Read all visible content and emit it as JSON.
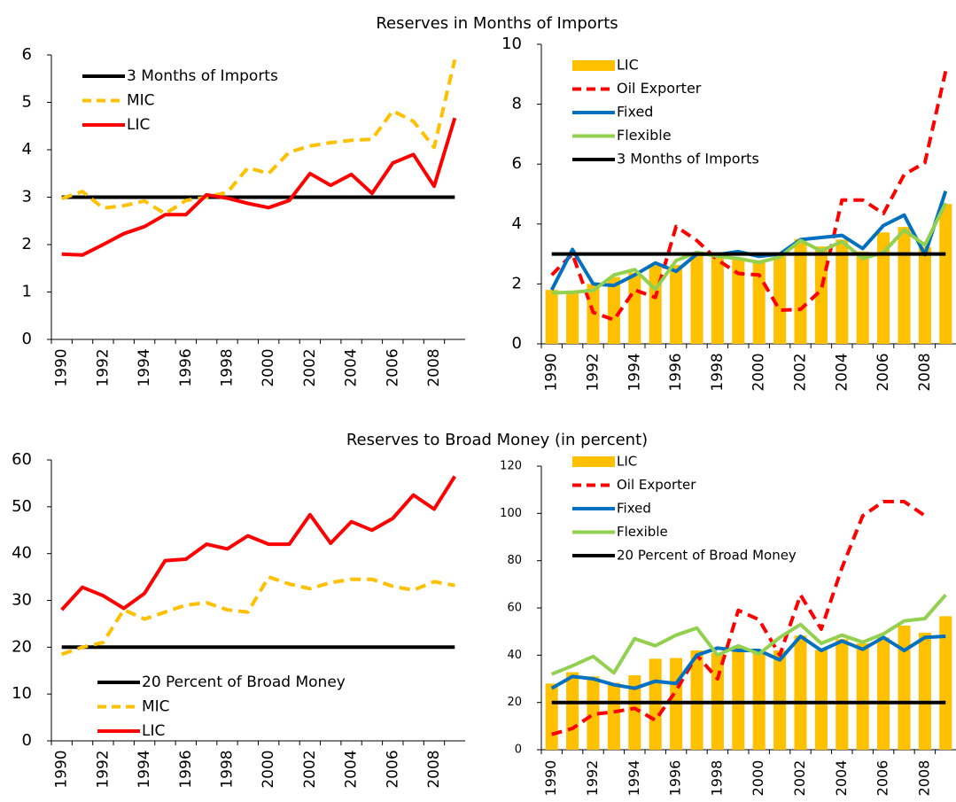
{
  "chart_data": [
    {
      "type": "line",
      "title": "Reserves in Months of Imports",
      "categories": [
        "1990",
        null,
        "1992",
        null,
        "1994",
        null,
        "1996",
        null,
        "1998",
        null,
        "2000",
        null,
        "2002",
        null,
        "2004",
        null,
        "2006",
        null,
        "2008",
        null
      ],
      "ylim": [
        0,
        6
      ],
      "yticks": [
        0,
        1,
        2,
        3,
        4,
        5,
        6
      ],
      "legend": "upper left",
      "series": [
        {
          "name": "3 Months of Imports",
          "color": "#000000",
          "values": [
            3,
            3,
            3,
            3,
            3,
            3,
            3,
            3,
            3,
            3,
            3,
            3,
            3,
            3,
            3,
            3,
            3,
            3,
            3,
            3
          ]
        },
        {
          "name": "MIC",
          "color": "#ffc000",
          "dashed": true,
          "values": [
            2.97,
            3.12,
            2.77,
            2.82,
            2.92,
            2.65,
            2.93,
            3.0,
            3.1,
            3.62,
            3.5,
            3.95,
            4.08,
            4.15,
            4.2,
            4.22,
            4.82,
            4.6,
            4.05,
            5.9
          ]
        },
        {
          "name": "LIC",
          "color": "#ff0000",
          "values": [
            1.8,
            1.78,
            2.0,
            2.23,
            2.38,
            2.63,
            2.63,
            3.05,
            2.98,
            2.87,
            2.78,
            2.93,
            3.5,
            3.25,
            3.48,
            3.08,
            3.72,
            3.9,
            3.23,
            4.67
          ]
        }
      ]
    },
    {
      "type": "line",
      "categories": [
        "1990",
        null,
        "1992",
        null,
        "1994",
        null,
        "1996",
        null,
        "1998",
        null,
        "2000",
        null,
        "2002",
        null,
        "2004",
        null,
        "2006",
        null,
        "2008",
        null
      ],
      "ylim": [
        0,
        10
      ],
      "yticks": [
        0,
        2,
        4,
        6,
        8,
        10
      ],
      "legend": "upper left",
      "series": [
        {
          "name": "LIC",
          "color": "#ffc000",
          "bar": true,
          "values": [
            1.8,
            1.78,
            2.0,
            2.23,
            2.38,
            2.63,
            2.63,
            3.05,
            2.98,
            2.87,
            2.78,
            2.93,
            3.5,
            3.25,
            3.48,
            3.08,
            3.72,
            3.9,
            3.23,
            4.67
          ]
        },
        {
          "name": "Oil Exporter",
          "color": "#ff0000",
          "dashed": true,
          "values": [
            2.3,
            3.0,
            1.05,
            0.8,
            1.8,
            1.55,
            3.92,
            3.45,
            2.8,
            2.35,
            2.3,
            1.12,
            1.15,
            1.8,
            4.8,
            4.8,
            4.35,
            5.65,
            6.05,
            9.1
          ]
        },
        {
          "name": "Fixed",
          "color": "#0070c0",
          "values": [
            1.8,
            3.15,
            2.0,
            1.95,
            2.3,
            2.7,
            2.42,
            3.0,
            2.98,
            3.08,
            2.92,
            3.0,
            3.48,
            3.55,
            3.62,
            3.18,
            3.95,
            4.3,
            2.98,
            5.1
          ]
        },
        {
          "name": "Flexible",
          "color": "#92d050",
          "values": [
            1.7,
            1.72,
            1.78,
            2.3,
            2.48,
            1.82,
            2.78,
            3.05,
            2.92,
            2.85,
            2.72,
            2.9,
            3.45,
            3.1,
            3.42,
            2.85,
            3.05,
            3.8,
            3.3,
            4.7
          ]
        },
        {
          "name": "3 Months of Imports",
          "color": "#000000",
          "values": [
            3,
            3,
            3,
            3,
            3,
            3,
            3,
            3,
            3,
            3,
            3,
            3,
            3,
            3,
            3,
            3,
            3,
            3,
            3,
            3
          ]
        }
      ]
    },
    {
      "type": "line",
      "title": "Reserves to Broad Money (in percent)",
      "categories": [
        "1990",
        null,
        "1992",
        null,
        "1994",
        null,
        "1996",
        null,
        "1998",
        null,
        "2000",
        null,
        "2002",
        null,
        "2004",
        null,
        "2006",
        null,
        "2008",
        null
      ],
      "ylim": [
        0,
        60
      ],
      "yticks": [
        0,
        10,
        20,
        30,
        40,
        50,
        60
      ],
      "legend": "lower left",
      "series": [
        {
          "name": "20 Percent of Broad Money",
          "color": "#000000",
          "values": [
            20,
            20,
            20,
            20,
            20,
            20,
            20,
            20,
            20,
            20,
            20,
            20,
            20,
            20,
            20,
            20,
            20,
            20,
            20,
            20
          ]
        },
        {
          "name": "MIC",
          "color": "#ffc000",
          "dashed": true,
          "values": [
            18.5,
            20,
            21,
            28,
            26,
            27.5,
            29,
            29.5,
            28,
            27.5,
            35,
            33.5,
            32.5,
            33.8,
            34.5,
            34.5,
            33,
            32.2,
            34,
            33.2
          ]
        },
        {
          "name": "LIC",
          "color": "#ff0000",
          "values": [
            28,
            32.8,
            31,
            28.3,
            31.5,
            38.5,
            38.8,
            42,
            41,
            43.8,
            42,
            42,
            48.3,
            42.2,
            46.8,
            45,
            47.5,
            52.5,
            49.5,
            56.5
          ]
        }
      ]
    },
    {
      "type": "line",
      "categories": [
        "1990",
        null,
        "1992",
        null,
        "1994",
        null,
        "1996",
        null,
        "1998",
        null,
        "2000",
        null,
        "2002",
        null,
        "2004",
        null,
        "2006",
        null,
        "2008",
        null
      ],
      "ylim": [
        0,
        120
      ],
      "yticks": [
        0,
        20,
        40,
        60,
        80,
        100,
        120
      ],
      "legend": "upper left",
      "series": [
        {
          "name": "LIC",
          "color": "#ffc000",
          "bar": true,
          "values": [
            28,
            32.8,
            31,
            28.3,
            31.5,
            38.5,
            38.8,
            42,
            41,
            43.8,
            42,
            42,
            48.3,
            42.2,
            46.8,
            45,
            47.5,
            52.5,
            49.5,
            56.5
          ]
        },
        {
          "name": "Oil Exporter",
          "color": "#ff0000",
          "dashed": true,
          "values": [
            6.5,
            9,
            15,
            16,
            17.5,
            12.5,
            25,
            40,
            30,
            59,
            55,
            40,
            65.5,
            51,
            77,
            99,
            105,
            105,
            99,
            null
          ]
        },
        {
          "name": "Fixed",
          "color": "#0070c0",
          "values": [
            26,
            31,
            30,
            27.5,
            26,
            29,
            28,
            40,
            43,
            42,
            42,
            38,
            48,
            42,
            46,
            42.5,
            47.5,
            42,
            47.5,
            48
          ]
        },
        {
          "name": "Flexible",
          "color": "#92d050",
          "values": [
            32,
            35.5,
            39.5,
            32.5,
            47,
            44,
            48.5,
            51.5,
            40,
            44,
            40.5,
            47.5,
            53,
            45,
            48.5,
            45.5,
            49,
            54.5,
            55.5,
            65.5
          ]
        },
        {
          "name": "20 Percent of Broad Money",
          "color": "#000000",
          "values": [
            20,
            20,
            20,
            20,
            20,
            20,
            20,
            20,
            20,
            20,
            20,
            20,
            20,
            20,
            20,
            20,
            20,
            20,
            20,
            20
          ]
        }
      ]
    }
  ]
}
